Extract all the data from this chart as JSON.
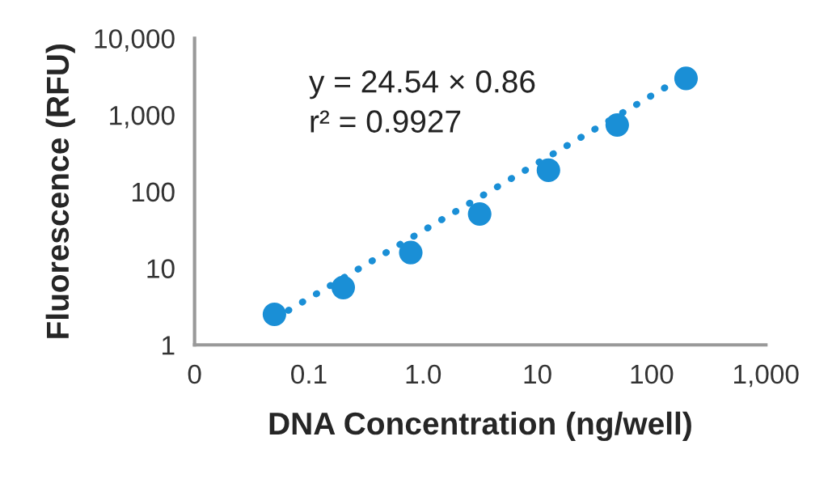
{
  "chart_data": {
    "type": "scatter",
    "xlabel": "DNA Concentration (ng/well)",
    "ylabel": "Fluorescence (RFU)",
    "log": "xy",
    "grid": false,
    "marker": "circle",
    "xlim": [
      0.01,
      1000
    ],
    "ylim": [
      1,
      10000
    ],
    "xticks": [
      {
        "value": 0.01,
        "label": "0"
      },
      0.1,
      {
        "value": 1,
        "label": "1.0"
      },
      10,
      100,
      {
        "value": 1000,
        "label": "1,000"
      }
    ],
    "yticks": [
      1,
      10,
      100,
      {
        "value": 1000,
        "label": "1,000"
      },
      {
        "value": 10000,
        "label": "10,000"
      }
    ],
    "annotations": [
      "y = 24.54 × 0.86",
      "r² = 0.9927"
    ],
    "series": [
      {
        "color": "#1a8fd6",
        "x": [
          0.05,
          0.2,
          0.78,
          3.125,
          12.5,
          50,
          200
        ],
        "values": [
          2.5,
          5.6,
          16,
          51,
          190,
          740,
          3000
        ]
      },
      {
        "type": "line",
        "color": "#1a8fd6",
        "line_style": "dotted",
        "marker": "none",
        "x": [
          0.05,
          200
        ],
        "values": [
          2.2,
          3300
        ]
      }
    ]
  }
}
